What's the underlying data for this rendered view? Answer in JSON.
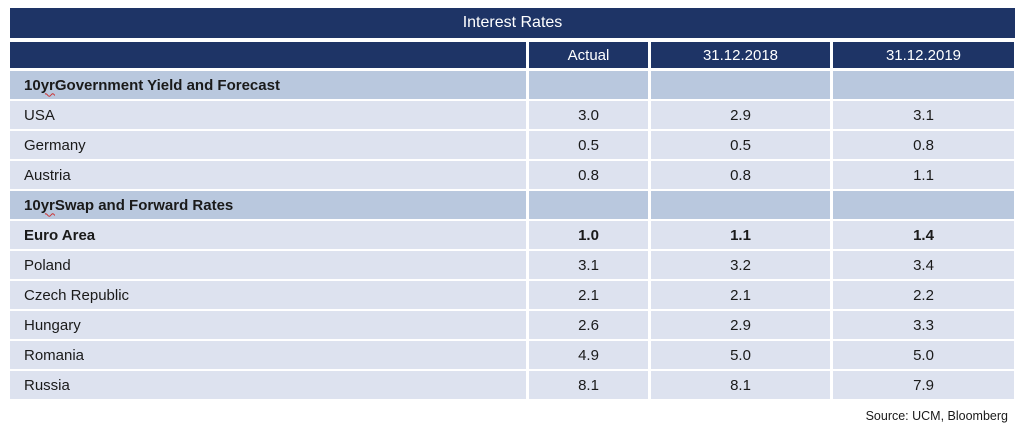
{
  "table": {
    "title": "Interest Rates",
    "columns": [
      "",
      "Actual",
      "31.12.2018",
      "31.12.2019"
    ],
    "rows": [
      {
        "type": "section",
        "prefix": "10 ",
        "word": "yr",
        "rest": " Government Yield and Forecast",
        "values": [
          "",
          "",
          ""
        ]
      },
      {
        "type": "data",
        "label": "USA",
        "values": [
          "3.0",
          "2.9",
          "3.1"
        ]
      },
      {
        "type": "data",
        "label": "Germany",
        "values": [
          "0.5",
          "0.5",
          "0.8"
        ]
      },
      {
        "type": "data",
        "label": "Austria",
        "values": [
          "0.8",
          "0.8",
          "1.1"
        ]
      },
      {
        "type": "section",
        "prefix": "10 ",
        "word": "yr",
        "rest": " Swap and Forward Rates",
        "values": [
          "",
          "",
          ""
        ]
      },
      {
        "type": "data-bold",
        "label": "Euro Area",
        "values": [
          "1.0",
          "1.1",
          "1.4"
        ]
      },
      {
        "type": "data",
        "label": "Poland",
        "values": [
          "3.1",
          "3.2",
          "3.4"
        ]
      },
      {
        "type": "data",
        "label": "Czech Republic",
        "values": [
          "2.1",
          "2.1",
          "2.2"
        ]
      },
      {
        "type": "data",
        "label": "Hungary",
        "values": [
          "2.6",
          "2.9",
          "3.3"
        ]
      },
      {
        "type": "data",
        "label": "Romania",
        "values": [
          "4.9",
          "5.0",
          "5.0"
        ]
      },
      {
        "type": "data",
        "label": "Russia",
        "values": [
          "8.1",
          "8.1",
          "7.9"
        ]
      }
    ]
  },
  "footer": {
    "source": "Source: UCM, Bloomberg"
  },
  "colors": {
    "header_navy": "#1e3466",
    "section_row": "#b9c8de",
    "data_row": "#dde2ef",
    "spellcheck_red": "#cc3333"
  },
  "chart_data": {
    "type": "table",
    "title": "Interest Rates",
    "columns": [
      "",
      "Actual",
      "31.12.2018",
      "31.12.2019"
    ],
    "sections": [
      {
        "name": "10 yr Government Yield and Forecast",
        "rows": [
          {
            "label": "USA",
            "actual": 3.0,
            "dec_2018": 2.9,
            "dec_2019": 3.1
          },
          {
            "label": "Germany",
            "actual": 0.5,
            "dec_2018": 0.5,
            "dec_2019": 0.8
          },
          {
            "label": "Austria",
            "actual": 0.8,
            "dec_2018": 0.8,
            "dec_2019": 1.1
          }
        ]
      },
      {
        "name": "10 yr Swap and Forward Rates",
        "rows": [
          {
            "label": "Euro Area",
            "actual": 1.0,
            "dec_2018": 1.1,
            "dec_2019": 1.4
          },
          {
            "label": "Poland",
            "actual": 3.1,
            "dec_2018": 3.2,
            "dec_2019": 3.4
          },
          {
            "label": "Czech Republic",
            "actual": 2.1,
            "dec_2018": 2.1,
            "dec_2019": 2.2
          },
          {
            "label": "Hungary",
            "actual": 2.6,
            "dec_2018": 2.9,
            "dec_2019": 3.3
          },
          {
            "label": "Romania",
            "actual": 4.9,
            "dec_2018": 5.0,
            "dec_2019": 5.0
          },
          {
            "label": "Russia",
            "actual": 8.1,
            "dec_2018": 8.1,
            "dec_2019": 7.9
          }
        ]
      }
    ],
    "source": "Source: UCM, Bloomberg"
  }
}
